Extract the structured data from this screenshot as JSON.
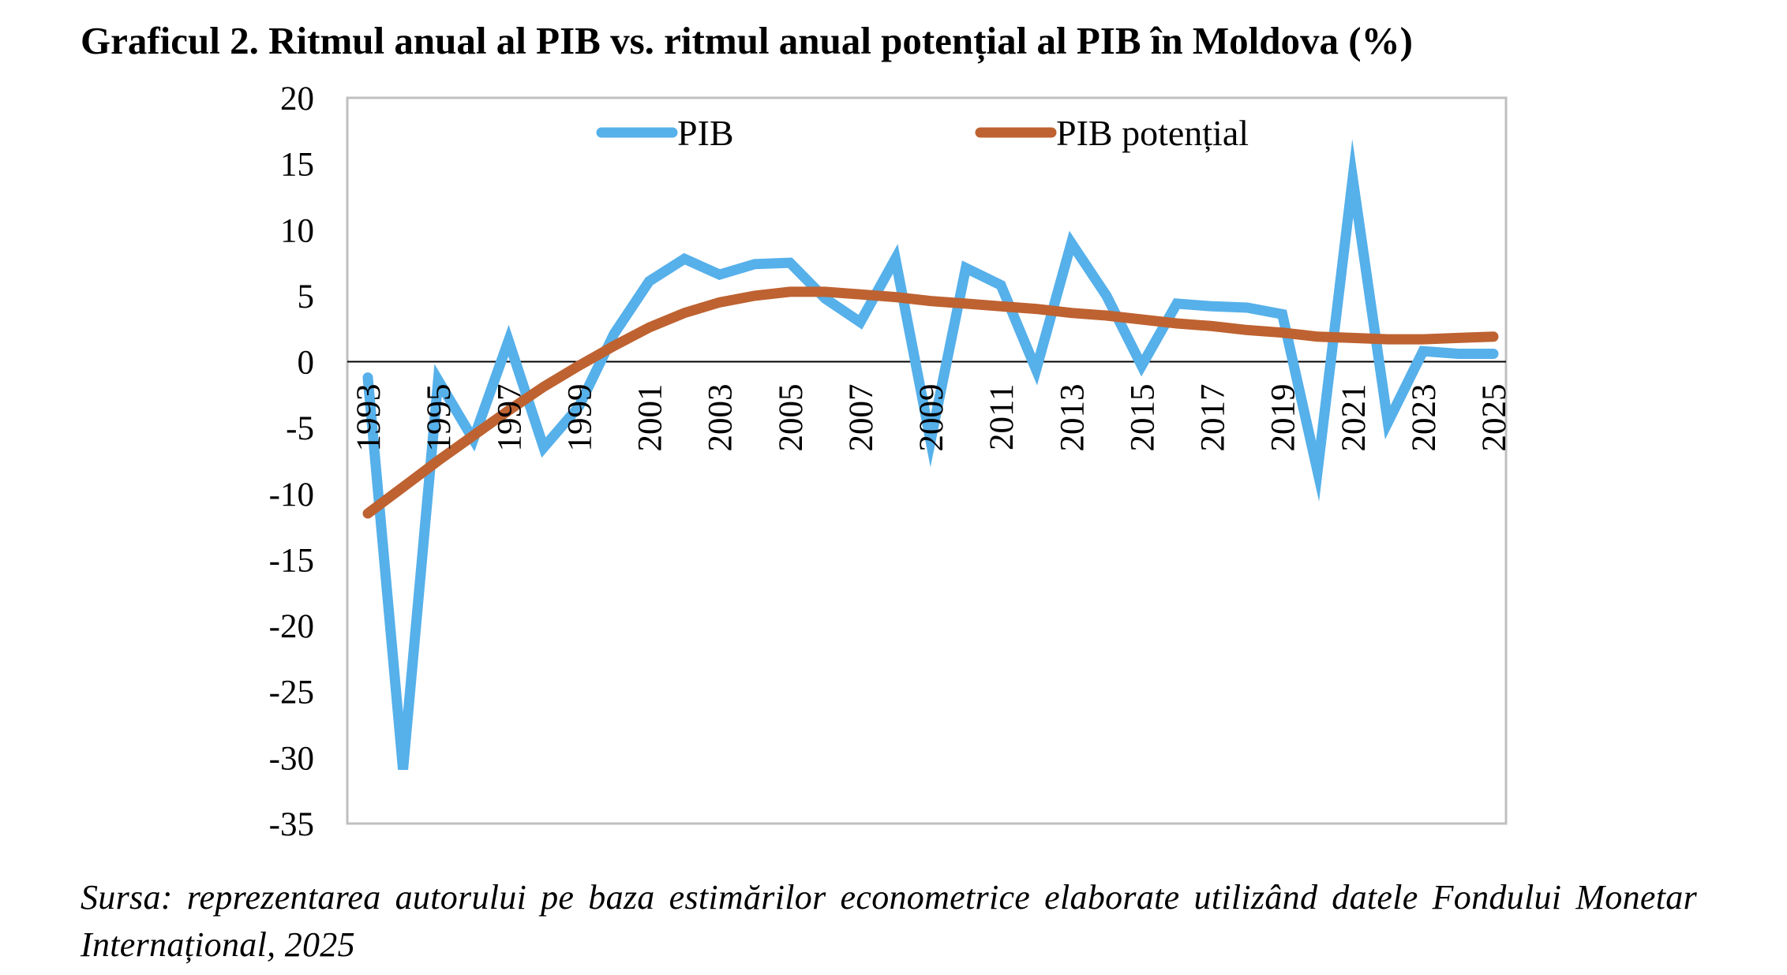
{
  "title": "Graficul 2. Ritmul anual al PIB vs. ritmul anual potențial al PIB în Moldova (%)",
  "source": "Sursa: reprezentarea autorului pe baza estimărilor econometrice elaborate utilizând datele Fondului Monetar Internațional, 2025",
  "chart_data": {
    "type": "line",
    "title": "Graficul 2. Ritmul anual al PIB vs. ritmul anual potențial al PIB în Moldova (%)",
    "xlabel": "",
    "ylabel": "",
    "ylim": [
      -35,
      20
    ],
    "yticks": [
      20,
      15,
      10,
      5,
      0,
      -5,
      -10,
      -15,
      -20,
      -25,
      -30,
      -35
    ],
    "x": [
      1993,
      1994,
      1995,
      1996,
      1997,
      1998,
      1999,
      2000,
      2001,
      2002,
      2003,
      2004,
      2005,
      2006,
      2007,
      2008,
      2009,
      2010,
      2011,
      2012,
      2013,
      2014,
      2015,
      2016,
      2017,
      2018,
      2019,
      2020,
      2021,
      2022,
      2023,
      2024,
      2025
    ],
    "xtick_labels": [
      "1993",
      "1995",
      "1997",
      "1999",
      "2001",
      "2003",
      "2005",
      "2007",
      "2009",
      "2011",
      "2013",
      "2015",
      "2017",
      "2019",
      "2021",
      "2023",
      "2025"
    ],
    "grid": false,
    "legend_position": "top",
    "series": [
      {
        "name": "PIB",
        "color": "#56B0EA",
        "values": [
          -1.2,
          -30.9,
          -1.4,
          -5.9,
          1.6,
          -6.5,
          -3.4,
          2.1,
          6.1,
          7.8,
          6.6,
          7.4,
          7.5,
          4.8,
          3.0,
          7.8,
          -6.0,
          7.1,
          5.8,
          -0.6,
          9.0,
          5.0,
          -0.3,
          4.4,
          4.2,
          4.1,
          3.6,
          -8.3,
          13.9,
          -4.6,
          0.8,
          0.6,
          0.6
        ]
      },
      {
        "name": "PIB potențial",
        "color": "#BE6231",
        "values": [
          -11.5,
          -9.5,
          -7.5,
          -5.6,
          -3.7,
          -1.9,
          -0.3,
          1.2,
          2.6,
          3.7,
          4.5,
          5.0,
          5.3,
          5.3,
          5.1,
          4.9,
          4.6,
          4.4,
          4.2,
          4.0,
          3.7,
          3.5,
          3.2,
          2.9,
          2.7,
          2.4,
          2.2,
          1.9,
          1.8,
          1.7,
          1.7,
          1.8,
          1.9
        ]
      }
    ]
  }
}
